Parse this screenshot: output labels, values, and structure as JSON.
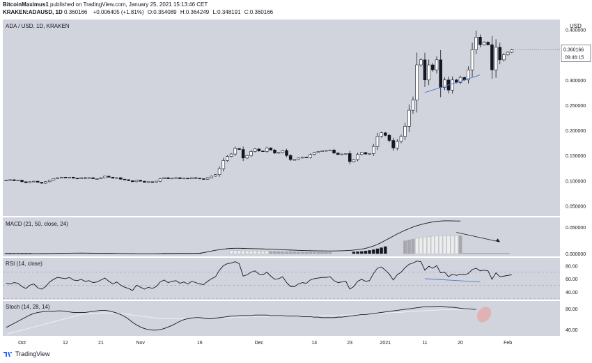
{
  "header": {
    "author": "BitcoinMaximus1",
    "published_text": "published on TradingView.com, January 25, 2021 15:13:46 CET",
    "symbol": "KRAKEN:ADAUSD, 1D",
    "price": "0.360166",
    "change": "+0.006405 (+1.81%)",
    "o_label": "O:",
    "o": "0.354089",
    "h_label": "H:",
    "h": "0.364249",
    "l_label": "L:",
    "l": "0.348191",
    "c_label": "C:",
    "c": "0.360166"
  },
  "footer": {
    "brand": "TradingView"
  },
  "colors": {
    "pane_bg": "#d1d4dc",
    "up_fill": "#ffffff",
    "down_fill": "#131722",
    "line": "#131722",
    "trend_blue": "#4a78d4",
    "stoch_signal": "#f0f0f0",
    "hist_light": "#eeeeee",
    "hist_gray": "#a6a8ae",
    "hist_dark": "#131722",
    "highlight": "#e8a0a0"
  },
  "chart_data": {
    "type": "candlestick",
    "title": "ADA / USD, 1D, KRAKEN",
    "ylabel": "USD",
    "ylim": [
      0.03,
      0.42
    ],
    "y_ticks": [
      "0.400000",
      "0.350000",
      "0.300000",
      "0.250000",
      "0.200000",
      "0.150000",
      "0.100000",
      "0.050000"
    ],
    "y_tick_values": [
      0.4,
      0.35,
      0.3,
      0.25,
      0.2,
      0.15,
      0.1,
      0.05
    ],
    "last_price_label": "0.360166",
    "countdown_label": "09:46:15",
    "x_ticks": [
      {
        "label": "Oct",
        "index": 4
      },
      {
        "label": "12",
        "index": 15
      },
      {
        "label": "21",
        "index": 24
      },
      {
        "label": "Nov",
        "index": 34
      },
      {
        "label": "16",
        "index": 49
      },
      {
        "label": "Dec",
        "index": 64
      },
      {
        "label": "14",
        "index": 78
      },
      {
        "label": "23",
        "index": 87
      },
      {
        "label": "2021",
        "index": 96
      },
      {
        "label": "11",
        "index": 106
      },
      {
        "label": "20",
        "index": 115
      },
      {
        "label": "Feb",
        "index": 127
      }
    ],
    "total_bars": 140,
    "closes": [
      0.101,
      0.102,
      0.1,
      0.101,
      0.098,
      0.096,
      0.098,
      0.099,
      0.097,
      0.095,
      0.098,
      0.101,
      0.104,
      0.106,
      0.107,
      0.106,
      0.107,
      0.105,
      0.104,
      0.106,
      0.105,
      0.106,
      0.104,
      0.104,
      0.106,
      0.109,
      0.107,
      0.105,
      0.106,
      0.103,
      0.102,
      0.1,
      0.098,
      0.101,
      0.099,
      0.097,
      0.098,
      0.097,
      0.099,
      0.104,
      0.106,
      0.104,
      0.105,
      0.106,
      0.104,
      0.105,
      0.104,
      0.106,
      0.105,
      0.104,
      0.103,
      0.106,
      0.109,
      0.112,
      0.124,
      0.14,
      0.148,
      0.153,
      0.164,
      0.162,
      0.145,
      0.15,
      0.158,
      0.163,
      0.159,
      0.158,
      0.165,
      0.161,
      0.155,
      0.156,
      0.16,
      0.15,
      0.142,
      0.142,
      0.145,
      0.147,
      0.146,
      0.152,
      0.156,
      0.158,
      0.159,
      0.16,
      0.161,
      0.155,
      0.152,
      0.153,
      0.154,
      0.138,
      0.142,
      0.152,
      0.156,
      0.153,
      0.154,
      0.168,
      0.188,
      0.195,
      0.19,
      0.18,
      0.165,
      0.178,
      0.188,
      0.208,
      0.24,
      0.26,
      0.33,
      0.34,
      0.3,
      0.33,
      0.32,
      0.34,
      0.285,
      0.3,
      0.28,
      0.3,
      0.295,
      0.305,
      0.3,
      0.32,
      0.36,
      0.385,
      0.37,
      0.375,
      0.37,
      0.32,
      0.365,
      0.34,
      0.35,
      0.355,
      0.36
    ],
    "macd_label": "MACD (21, 50, close, 24)",
    "macd_y_ticks": [
      "0.050000",
      "0.000000"
    ],
    "macd_y_tick_values": [
      0.05,
      0.0
    ],
    "macd_ylim": [
      -0.005,
      0.068
    ],
    "macd_line": [
      0.0,
      0.0,
      0.0001,
      0.0001,
      0.0,
      0.0,
      0.0,
      0.0001,
      0.0001,
      0.0002,
      0.0002,
      0.0003,
      0.0004,
      0.0006,
      0.0008,
      0.0009,
      0.001,
      0.0011,
      0.0011,
      0.0012,
      0.0011,
      0.0011,
      0.001,
      0.0009,
      0.0009,
      0.0008,
      0.0008,
      0.0007,
      0.0006,
      0.0005,
      0.0004,
      0.0003,
      0.0002,
      0.0001,
      0.0,
      0.0,
      0.0,
      0.0001,
      0.0001,
      0.0002,
      0.0002,
      0.0003,
      0.0003,
      0.0004,
      0.0004,
      0.0004,
      0.0005,
      0.0005,
      0.0006,
      0.001,
      0.002,
      0.0035,
      0.005,
      0.0065,
      0.0075,
      0.0085,
      0.0095,
      0.01,
      0.0102,
      0.0102,
      0.01,
      0.0098,
      0.0096,
      0.0094,
      0.0092,
      0.009,
      0.0087,
      0.0084,
      0.0081,
      0.0078,
      0.0075,
      0.0072,
      0.0069,
      0.0066,
      0.0063,
      0.006,
      0.0058,
      0.0056,
      0.0055,
      0.0054,
      0.0053,
      0.0052,
      0.0052,
      0.0052,
      0.0053,
      0.0055,
      0.0058,
      0.0062,
      0.0068,
      0.0076,
      0.0086,
      0.01,
      0.012,
      0.0145,
      0.0175,
      0.021,
      0.025,
      0.029,
      0.033,
      0.037,
      0.0405,
      0.044,
      0.047,
      0.05,
      0.0525,
      0.0545,
      0.0565,
      0.058,
      0.0595,
      0.0605,
      0.0612,
      0.0615,
      0.0615,
      0.0614,
      0.0613,
      0.0613
    ],
    "macd_hist_bars": [
      {
        "from": 0,
        "to": 6,
        "shade": "dark"
      },
      {
        "from": 7,
        "to": 20,
        "shade": "light"
      },
      {
        "from": 21,
        "to": 26,
        "shade": "gray"
      },
      {
        "from": 40,
        "to": 49,
        "shade": "dark"
      },
      {
        "from": 57,
        "to": 66,
        "shade": "light"
      },
      {
        "from": 67,
        "to": 82,
        "shade": "gray"
      },
      {
        "from": 88,
        "to": 96,
        "shade": "dark"
      },
      {
        "from": 101,
        "to": 103,
        "shade": "gray"
      },
      {
        "from": 104,
        "to": 114,
        "shade": "light"
      },
      {
        "from": 115,
        "to": 127,
        "shade": "gray"
      }
    ],
    "rsi_label": "RSI (14, close)",
    "rsi_y_ticks": [
      "80.00",
      "60.00",
      "40.00"
    ],
    "rsi_y_tick_values": [
      80,
      60,
      40
    ],
    "rsi_ylim": [
      28,
      92
    ],
    "rsi_bands": [
      70,
      50,
      30
    ],
    "rsi": [
      53,
      52,
      54,
      53,
      48,
      45,
      50,
      52,
      46,
      44,
      48,
      55,
      59,
      62,
      61,
      60,
      62,
      58,
      57,
      59,
      56,
      57,
      54,
      55,
      58,
      61,
      56,
      52,
      55,
      50,
      47,
      45,
      42,
      50,
      47,
      44,
      47,
      45,
      48,
      55,
      58,
      54,
      56,
      57,
      53,
      55,
      52,
      56,
      54,
      52,
      51,
      56,
      60,
      63,
      73,
      80,
      83,
      84,
      86,
      83,
      64,
      66,
      70,
      72,
      67,
      66,
      70,
      64,
      59,
      60,
      63,
      54,
      48,
      48,
      52,
      54,
      53,
      58,
      60,
      61,
      62,
      62,
      63,
      57,
      54,
      55,
      56,
      44,
      48,
      56,
      59,
      56,
      57,
      68,
      76,
      78,
      73,
      67,
      58,
      66,
      70,
      77,
      82,
      84,
      87,
      86,
      73,
      79,
      76,
      80,
      69,
      70,
      63,
      67,
      65,
      67,
      66,
      68,
      74,
      76,
      72,
      73,
      72,
      59,
      69,
      63,
      64,
      65,
      66
    ],
    "stoch_label": "Stoch (14, 28, 14)",
    "stoch_y_ticks": [
      "80.00",
      "40.00"
    ],
    "stoch_y_tick_values": [
      80,
      40
    ],
    "stoch_ylim": [
      28,
      95
    ],
    "stoch_k": [
      44,
      48,
      52,
      56,
      60,
      64,
      68,
      71,
      73,
      74,
      75,
      75,
      75,
      76,
      76,
      75,
      74,
      73,
      73,
      73,
      73,
      74,
      75,
      76,
      77,
      77,
      76,
      74,
      72,
      69,
      65,
      60,
      54,
      49,
      45,
      42,
      40,
      39,
      39,
      40,
      42,
      45,
      48,
      52,
      56,
      59,
      61,
      62,
      63,
      63,
      62,
      61,
      61,
      62,
      63,
      64,
      65,
      66,
      66,
      67,
      67,
      67,
      67,
      68,
      68,
      68,
      68,
      67,
      67,
      67,
      67,
      66,
      66,
      66,
      66,
      65,
      65,
      65,
      64,
      64,
      63,
      63,
      63,
      63,
      64,
      64,
      65,
      66,
      67,
      68,
      69,
      69,
      70,
      71,
      72,
      73,
      74,
      75,
      76,
      77,
      78,
      79,
      80,
      81,
      82,
      83,
      84,
      84,
      84,
      85,
      85,
      84,
      83,
      83,
      82,
      81,
      80,
      80,
      79,
      79
    ],
    "stoch_d": [
      31,
      33,
      35,
      37,
      39,
      41,
      43,
      45,
      47,
      49,
      51,
      53,
      55,
      57,
      59,
      61,
      63,
      65,
      67,
      69,
      70,
      70,
      71,
      71,
      72,
      72,
      72,
      72,
      72,
      71,
      70,
      69,
      68,
      67,
      66,
      65,
      64,
      63,
      62,
      62,
      61,
      61,
      61,
      61,
      61,
      61,
      61,
      61,
      61,
      62,
      62,
      62,
      62,
      62,
      63,
      63,
      63,
      63,
      64,
      64,
      64,
      64,
      65,
      65,
      65,
      65,
      65,
      66,
      66,
      66,
      66,
      66,
      66,
      66,
      66,
      66,
      66,
      66,
      66,
      66,
      67,
      67,
      67,
      67,
      67,
      68,
      68,
      68,
      68,
      69,
      69,
      69,
      70,
      70,
      71,
      71,
      72,
      72,
      73,
      73,
      73,
      74,
      74,
      75,
      75,
      76,
      76,
      77,
      77,
      77,
      78,
      78,
      78,
      78,
      78,
      78,
      78,
      79,
      79,
      79
    ]
  }
}
